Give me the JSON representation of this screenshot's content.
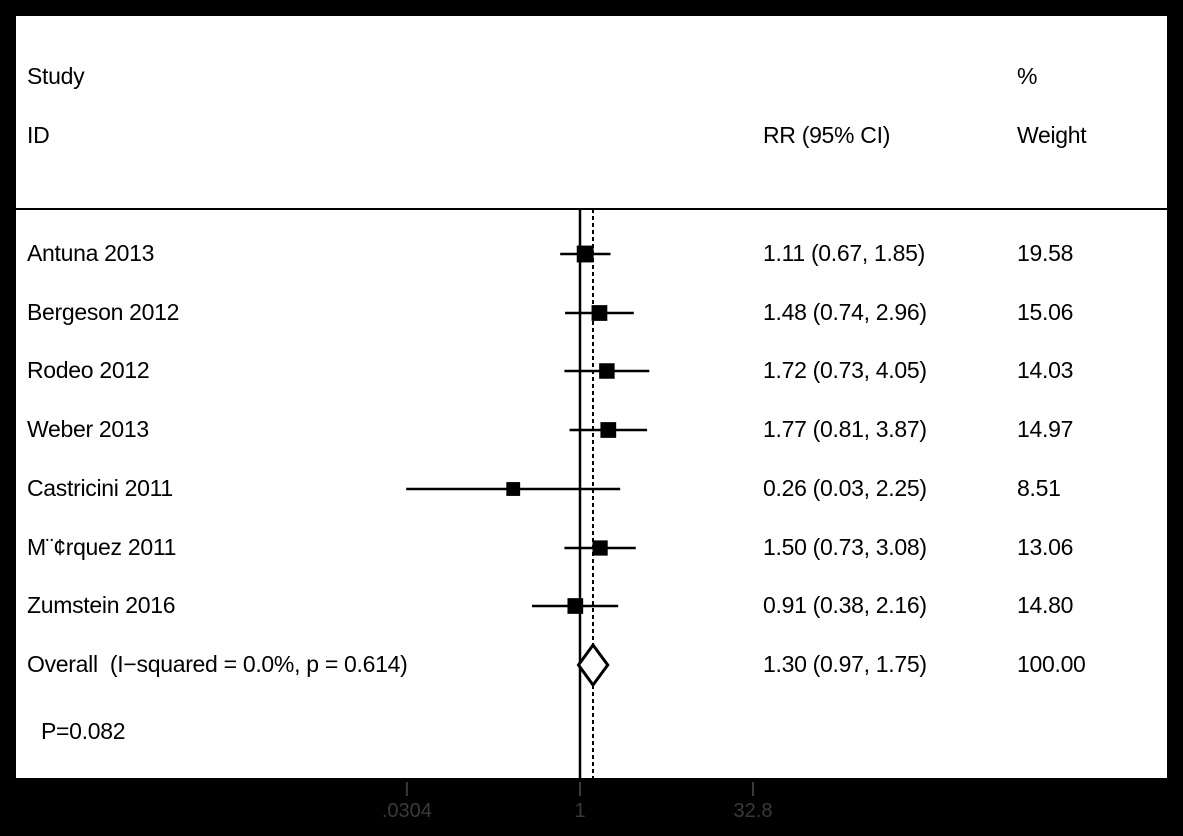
{
  "header": {
    "study_line1": "Study",
    "study_line2": "ID",
    "pct_line1": "%",
    "weight_line2": "Weight",
    "effect_header": "RR (95% CI)"
  },
  "footer": {
    "p_value": "P=0.082"
  },
  "chart_data": {
    "type": "forest",
    "xscale": "log",
    "x_ticks": [
      0.0304,
      1,
      32.8
    ],
    "x_tick_labels": [
      ".0304",
      "1",
      "32.8"
    ],
    "null_line": 1,
    "pooled_line": 1.3,
    "studies": [
      {
        "label": "Antuna 2013",
        "rr": 1.11,
        "lo": 0.67,
        "hi": 1.85,
        "ci_text": "1.11 (0.67, 1.85)",
        "weight": 19.58,
        "weight_text": "19.58"
      },
      {
        "label": "Bergeson 2012",
        "rr": 1.48,
        "lo": 0.74,
        "hi": 2.96,
        "ci_text": "1.48 (0.74, 2.96)",
        "weight": 15.06,
        "weight_text": "15.06"
      },
      {
        "label": "Rodeo 2012",
        "rr": 1.72,
        "lo": 0.73,
        "hi": 4.05,
        "ci_text": "1.72 (0.73, 4.05)",
        "weight": 14.03,
        "weight_text": "14.03"
      },
      {
        "label": "Weber 2013",
        "rr": 1.77,
        "lo": 0.81,
        "hi": 3.87,
        "ci_text": "1.77 (0.81, 3.87)",
        "weight": 14.97,
        "weight_text": "14.97"
      },
      {
        "label": "Castricini 2011",
        "rr": 0.26,
        "lo": 0.03,
        "hi": 2.25,
        "ci_text": "0.26 (0.03, 2.25)",
        "weight": 8.51,
        "weight_text": "8.51"
      },
      {
        "label": "M¨¢rquez 2011",
        "rr": 1.5,
        "lo": 0.73,
        "hi": 3.08,
        "ci_text": "1.50 (0.73, 3.08)",
        "weight": 13.06,
        "weight_text": "13.06"
      },
      {
        "label": "Zumstein 2016",
        "rr": 0.91,
        "lo": 0.38,
        "hi": 2.16,
        "ci_text": "0.91 (0.38, 2.16)",
        "weight": 14.8,
        "weight_text": "14.80"
      }
    ],
    "overall": {
      "label": "Overall  (I−squared = 0.0%, p = 0.614)",
      "rr": 1.3,
      "lo": 0.97,
      "hi": 1.75,
      "ci_text": "1.30 (0.97, 1.75)",
      "weight": 100.0,
      "weight_text": "100.00"
    }
  }
}
